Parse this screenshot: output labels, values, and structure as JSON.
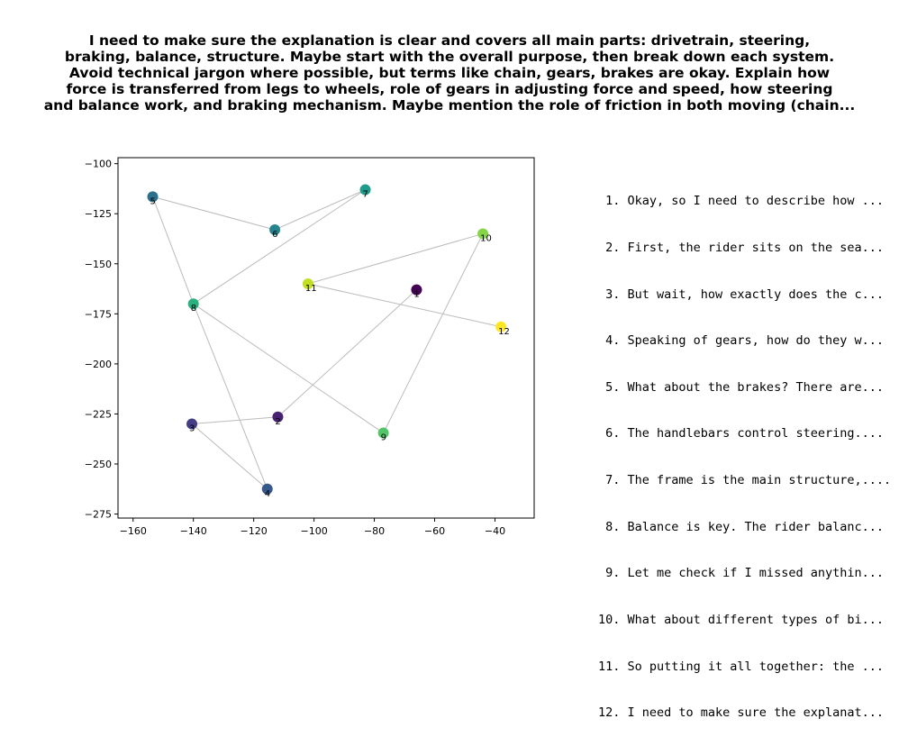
{
  "title_lines": [
    "I need to make sure the explanation is clear and covers all main parts: drivetrain, steering,",
    "braking, balance, structure. Maybe start with the overall purpose, then break down each system.",
    "Avoid technical jargon where possible, but terms like chain, gears, brakes are okay. Explain how",
    "force is transferred from legs to wheels, role of gears in adjusting force and speed, how steering",
    "and balance work, and braking mechanism. Maybe mention the role of friction in both moving (chain..."
  ],
  "steps": [
    " 1. Okay, so I need to describe how ...",
    " 2. First, the rider sits on the sea...",
    " 3. But wait, how exactly does the c...",
    " 4. Speaking of gears, how do they w...",
    " 5. What about the brakes? There are...",
    " 6. The handlebars control steering....",
    " 7. The frame is the main structure,....",
    " 8. Balance is key. The rider balanc...",
    " 9. Let me check if I missed anythin...",
    "10. What about different types of bi...",
    "11. So putting it all together: the ...",
    "12. I need to make sure the explanat..."
  ],
  "chart_data": {
    "type": "scatter",
    "title": "",
    "xlabel": "",
    "ylabel": "",
    "xlim": [
      -165,
      -27
    ],
    "ylim": [
      -277,
      -97
    ],
    "xticks": [
      -160,
      -140,
      -120,
      -100,
      -80,
      -60,
      -40
    ],
    "yticks": [
      -100,
      -125,
      -150,
      -175,
      -200,
      -225,
      -250,
      -275
    ],
    "points": [
      {
        "label": "1",
        "x": -66,
        "y": -163,
        "color": "#440154"
      },
      {
        "label": "2",
        "x": -112,
        "y": -226.5,
        "color": "#482173"
      },
      {
        "label": "3",
        "x": -140.5,
        "y": -230,
        "color": "#433e85"
      },
      {
        "label": "4",
        "x": -115.5,
        "y": -262.5,
        "color": "#38598c"
      },
      {
        "label": "5",
        "x": -153.5,
        "y": -116.5,
        "color": "#2d708e"
      },
      {
        "label": "6",
        "x": -113,
        "y": -133,
        "color": "#25858e"
      },
      {
        "label": "7",
        "x": -83,
        "y": -113,
        "color": "#1e9b8a"
      },
      {
        "label": "8",
        "x": -140,
        "y": -170,
        "color": "#2ab07f"
      },
      {
        "label": "9",
        "x": -77,
        "y": -234.5,
        "color": "#52c569"
      },
      {
        "label": "10",
        "x": -44,
        "y": -135,
        "color": "#86d549"
      },
      {
        "label": "11",
        "x": -102,
        "y": -160,
        "color": "#c2df23"
      },
      {
        "label": "12",
        "x": -38,
        "y": -181.5,
        "color": "#fde725"
      }
    ],
    "edges": [
      [
        1,
        2
      ],
      [
        2,
        3
      ],
      [
        3,
        4
      ],
      [
        4,
        8
      ],
      [
        8,
        5
      ],
      [
        5,
        6
      ],
      [
        6,
        7
      ],
      [
        7,
        8
      ],
      [
        8,
        9
      ],
      [
        9,
        10
      ],
      [
        10,
        11
      ],
      [
        11,
        12
      ]
    ],
    "grid": false,
    "legend": "none"
  }
}
